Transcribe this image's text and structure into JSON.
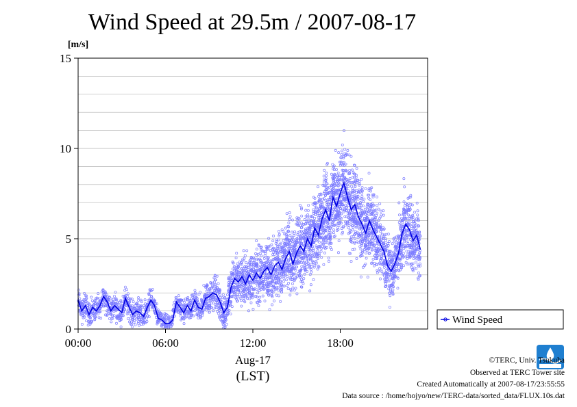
{
  "chart_data": {
    "type": "scatter",
    "title": "Wind Speed at 29.5m / 2007-08-17",
    "ylabel": "[m/s]",
    "ylim": [
      0,
      15
    ],
    "yticks": [
      "0",
      "5",
      "10",
      "15"
    ],
    "xlim": [
      0,
      24
    ],
    "xticks": [
      "00:00",
      "06:00",
      "12:00",
      "18:00"
    ],
    "xdate": "Aug-17",
    "xunit": "(LST)",
    "grid": true,
    "legend": {
      "position": "bottom-right-outside",
      "label": "Wind Speed"
    },
    "colors": {
      "line": "#0000e0",
      "points": "#7a7aff"
    },
    "series": [
      {
        "name": "Wind Speed",
        "kind": "line+points",
        "x_unit": "hour",
        "x": [
          0.0,
          0.25,
          0.5,
          0.75,
          1.0,
          1.25,
          1.5,
          1.75,
          2.0,
          2.25,
          2.5,
          2.75,
          3.0,
          3.25,
          3.5,
          3.75,
          4.0,
          4.25,
          4.5,
          4.75,
          5.0,
          5.25,
          5.5,
          5.75,
          6.0,
          6.25,
          6.5,
          6.75,
          7.0,
          7.25,
          7.5,
          7.75,
          8.0,
          8.25,
          8.5,
          8.75,
          9.0,
          9.25,
          9.5,
          9.75,
          10.0,
          10.25,
          10.5,
          10.75,
          11.0,
          11.25,
          11.5,
          11.75,
          12.0,
          12.25,
          12.5,
          12.75,
          13.0,
          13.25,
          13.5,
          13.75,
          14.0,
          14.25,
          14.5,
          14.75,
          15.0,
          15.25,
          15.5,
          15.75,
          16.0,
          16.25,
          16.5,
          16.75,
          17.0,
          17.25,
          17.5,
          17.75,
          18.0,
          18.25,
          18.5,
          18.75,
          19.0,
          19.25,
          19.5,
          19.75,
          20.0,
          20.25,
          20.5,
          20.75,
          21.0,
          21.25,
          21.5,
          21.75,
          22.0,
          22.25,
          22.5,
          22.75,
          23.0,
          23.25,
          23.5
        ],
        "values": [
          1.6,
          1.0,
          1.3,
          0.8,
          1.2,
          1.0,
          1.3,
          1.8,
          1.5,
          1.0,
          1.3,
          1.1,
          0.9,
          1.7,
          1.2,
          0.8,
          1.0,
          0.9,
          0.7,
          1.2,
          1.6,
          1.3,
          0.6,
          0.5,
          0.3,
          0.3,
          0.5,
          1.5,
          1.2,
          0.9,
          1.3,
          1.0,
          1.6,
          1.2,
          1.1,
          1.7,
          1.8,
          2.0,
          1.9,
          1.5,
          0.9,
          1.2,
          2.3,
          2.8,
          2.6,
          2.9,
          2.5,
          3.0,
          2.7,
          3.1,
          2.8,
          3.2,
          3.4,
          3.0,
          3.5,
          3.7,
          3.3,
          3.9,
          4.3,
          3.6,
          4.2,
          4.6,
          4.3,
          5.0,
          4.6,
          5.6,
          5.2,
          6.1,
          6.6,
          6.0,
          7.3,
          6.8,
          7.5,
          8.1,
          7.3,
          6.6,
          6.9,
          6.2,
          5.8,
          5.3,
          6.0,
          5.5,
          5.1,
          4.7,
          4.3,
          3.5,
          3.2,
          3.6,
          4.2,
          5.3,
          5.8,
          5.5,
          4.9,
          5.2,
          4.4
        ],
        "spread": [
          0.6,
          0.6,
          0.6,
          0.6,
          0.6,
          0.6,
          0.6,
          0.6,
          0.6,
          0.6,
          0.6,
          0.6,
          0.6,
          0.6,
          0.6,
          0.6,
          0.6,
          0.6,
          0.6,
          0.6,
          0.5,
          0.5,
          0.4,
          0.4,
          0.4,
          0.4,
          0.5,
          0.6,
          0.6,
          0.6,
          0.6,
          0.6,
          0.6,
          0.6,
          0.7,
          0.8,
          0.8,
          0.8,
          0.9,
          0.9,
          1.0,
          1.1,
          1.1,
          1.2,
          1.2,
          1.2,
          1.3,
          1.3,
          1.3,
          1.3,
          1.3,
          1.4,
          1.4,
          1.5,
          1.5,
          1.5,
          1.6,
          1.6,
          1.7,
          1.7,
          1.7,
          1.8,
          1.8,
          1.8,
          1.9,
          1.9,
          1.9,
          2.0,
          2.0,
          2.0,
          2.0,
          2.0,
          2.0,
          2.0,
          2.0,
          2.0,
          1.9,
          1.9,
          1.8,
          1.8,
          1.8,
          1.7,
          1.6,
          1.6,
          1.6,
          1.5,
          1.5,
          1.5,
          1.6,
          1.7,
          1.7,
          1.7,
          1.6,
          1.6,
          1.6
        ]
      }
    ]
  },
  "footer": {
    "copyright": "©TERC, Univ. Tsukuba",
    "observed": "Observed at TERC Tower site",
    "created": "Created Automatically at 2007-08-17/23:55:55",
    "source": "Data source : /home/hojyo/new/TERC-data/sorted_data/FLUX.10s.dat"
  },
  "logo_icon": "terc-logo-icon"
}
